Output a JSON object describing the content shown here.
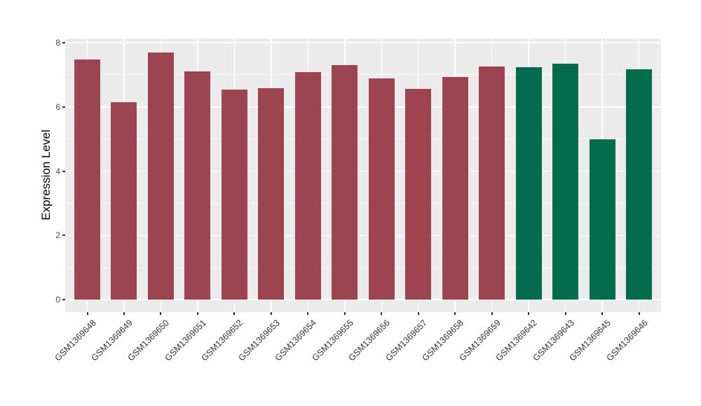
{
  "figure": {
    "background_color": "#FFFFFF",
    "panel_background_color": "#EBEBEB",
    "gridline_color": "#FFFFFF",
    "tick_mark_color": "#333333",
    "axis_text_color": "#4A4A4A",
    "axis_title_color": "#000000",
    "group_colors": {
      "group_1": "#9C4450",
      "group_2": "#046B4D"
    }
  },
  "chart_data": {
    "type": "bar",
    "title": "",
    "xlabel": "",
    "ylabel": "Expression Level",
    "ylim": [
      0,
      8
    ],
    "yticks": [
      0,
      2,
      4,
      6,
      8
    ],
    "ytick_labels": [
      "0",
      "2",
      "4",
      "6",
      "8"
    ],
    "yticks_minor": [
      1,
      3,
      5,
      7
    ],
    "grid": "on",
    "legend_position": "none",
    "categories": [
      "GSM1369648",
      "GSM1369649",
      "GSM1369650",
      "GSM1369651",
      "GSM1369652",
      "GSM1369653",
      "GSM1369654",
      "GSM1369655",
      "GSM1369656",
      "GSM1369657",
      "GSM1369658",
      "GSM1369659",
      "GSM1369642",
      "GSM1369643",
      "GSM1369645",
      "GSM1369646"
    ],
    "values": [
      7.48,
      6.15,
      7.7,
      7.1,
      6.53,
      6.58,
      7.08,
      7.3,
      6.89,
      6.57,
      6.94,
      7.25,
      7.24,
      7.34,
      4.99,
      7.18
    ],
    "colors": [
      "#9C4450",
      "#9C4450",
      "#9C4450",
      "#9C4450",
      "#9C4450",
      "#9C4450",
      "#9C4450",
      "#9C4450",
      "#9C4450",
      "#9C4450",
      "#9C4450",
      "#9C4450",
      "#046B4D",
      "#046B4D",
      "#046B4D",
      "#046B4D"
    ]
  }
}
